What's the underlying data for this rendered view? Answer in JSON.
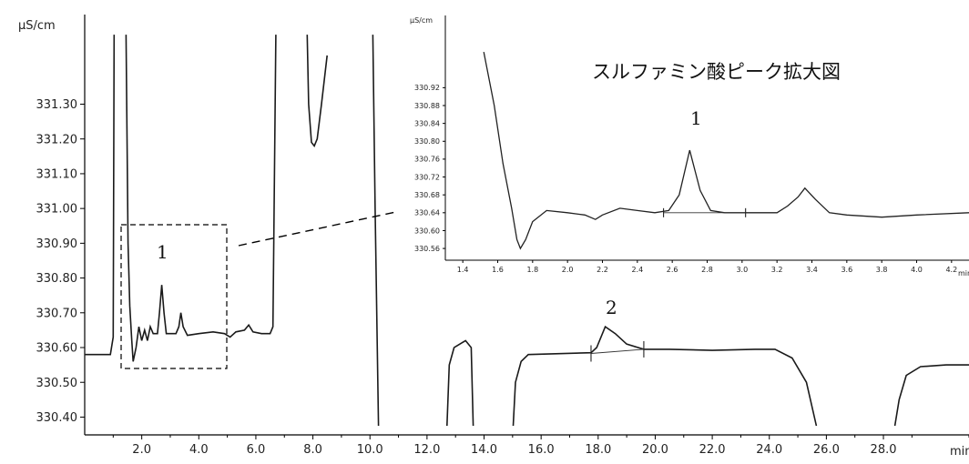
{
  "chart_data": [
    {
      "type": "line",
      "title": "",
      "xlabel": "min",
      "ylabel": "µS/cm",
      "xlim": [
        0,
        31
      ],
      "ylim": [
        330.375,
        331.44
      ],
      "x_ticks": [
        "2.0",
        "4.0",
        "6.0",
        "8.0",
        "10.0",
        "12.0",
        "14.0",
        "16.0",
        "18.0",
        "20.0",
        "22.0",
        "24.0",
        "26.0",
        "28.0"
      ],
      "y_ticks": [
        "330.40",
        "330.50",
        "330.60",
        "330.70",
        "330.80",
        "330.90",
        "331.00",
        "331.10",
        "331.20",
        "331.30"
      ],
      "grid": false,
      "annotations": [
        "1",
        "2"
      ],
      "series": [
        {
          "segments": [
            [
              [
                0,
                330.58
              ],
              [
                0.9,
                330.58
              ],
              [
                1.0,
                330.63
              ],
              [
                1.03,
                331.5
              ]
            ],
            [
              [
                1.45,
                331.5
              ],
              [
                1.52,
                330.9
              ],
              [
                1.58,
                330.72
              ],
              [
                1.65,
                330.62
              ],
              [
                1.7,
                330.56
              ],
              [
                1.8,
                330.6
              ],
              [
                1.9,
                330.66
              ],
              [
                2.0,
                330.62
              ],
              [
                2.1,
                330.65
              ],
              [
                2.2,
                330.62
              ],
              [
                2.3,
                330.66
              ],
              [
                2.4,
                330.64
              ],
              [
                2.55,
                330.64
              ],
              [
                2.62,
                330.7
              ],
              [
                2.7,
                330.78
              ],
              [
                2.78,
                330.7
              ],
              [
                2.86,
                330.64
              ],
              [
                3.0,
                330.64
              ],
              [
                3.2,
                330.64
              ],
              [
                3.3,
                330.66
              ],
              [
                3.37,
                330.7
              ],
              [
                3.45,
                330.66
              ],
              [
                3.6,
                330.635
              ],
              [
                4.0,
                330.64
              ],
              [
                4.5,
                330.645
              ],
              [
                4.9,
                330.64
              ],
              [
                5.1,
                330.63
              ],
              [
                5.3,
                330.645
              ],
              [
                5.6,
                330.65
              ],
              [
                5.75,
                330.665
              ],
              [
                5.9,
                330.645
              ],
              [
                6.2,
                330.64
              ],
              [
                6.5,
                330.64
              ],
              [
                6.6,
                330.66
              ],
              [
                6.7,
                331.5
              ]
            ],
            [
              [
                7.8,
                331.5
              ],
              [
                7.85,
                331.3
              ],
              [
                7.95,
                331.19
              ],
              [
                8.05,
                331.18
              ],
              [
                8.15,
                331.2
              ],
              [
                8.3,
                331.3
              ],
              [
                8.5,
                331.44
              ]
            ],
            [
              [
                10.1,
                331.5
              ],
              [
                10.18,
                331.0
              ],
              [
                10.3,
                330.375
              ]
            ],
            [
              [
                12.7,
                330.375
              ],
              [
                12.78,
                330.55
              ],
              [
                12.95,
                330.6
              ],
              [
                13.35,
                330.62
              ],
              [
                13.55,
                330.6
              ],
              [
                13.62,
                330.375
              ]
            ],
            [
              [
                15.02,
                330.375
              ],
              [
                15.1,
                330.5
              ],
              [
                15.3,
                330.56
              ],
              [
                15.55,
                330.58
              ],
              [
                17.75,
                330.585
              ],
              [
                17.95,
                330.6
              ],
              [
                18.25,
                330.66
              ],
              [
                18.6,
                330.64
              ],
              [
                19.0,
                330.61
              ],
              [
                19.6,
                330.595
              ],
              [
                20.5,
                330.595
              ],
              [
                22.0,
                330.592
              ],
              [
                23.5,
                330.595
              ],
              [
                24.2,
                330.595
              ],
              [
                24.8,
                330.57
              ],
              [
                25.3,
                330.5
              ],
              [
                25.65,
                330.375
              ]
            ],
            [
              [
                28.4,
                330.375
              ],
              [
                28.55,
                330.45
              ],
              [
                28.8,
                330.52
              ],
              [
                29.3,
                330.545
              ],
              [
                30.2,
                330.55
              ],
              [
                31,
                330.55
              ]
            ]
          ],
          "baseline": [
            [
              17.75,
              330.583
            ],
            [
              19.6,
              330.595
            ]
          ]
        }
      ]
    },
    {
      "type": "line",
      "title": "スルファミン酸ピーク拡大図",
      "xlabel": "min",
      "ylabel": "µS/cm",
      "xlim": [
        1.3,
        4.3
      ],
      "ylim": [
        330.55,
        330.99
      ],
      "x_ticks": [
        "1.4",
        "1.6",
        "1.8",
        "2.0",
        "2.2",
        "2.4",
        "2.6",
        "2.8",
        "3.0",
        "3.2",
        "3.4",
        "3.6",
        "3.8",
        "4.0",
        "4.2"
      ],
      "y_ticks": [
        "330.56",
        "330.60",
        "330.64",
        "330.68",
        "330.72",
        "330.76",
        "330.80",
        "330.84",
        "330.88",
        "330.92"
      ],
      "grid": false,
      "annotations": [
        "1"
      ],
      "series": [
        {
          "points": [
            [
              1.52,
              331.0
            ],
            [
              1.58,
              330.88
            ],
            [
              1.63,
              330.75
            ],
            [
              1.68,
              330.65
            ],
            [
              1.71,
              330.58
            ],
            [
              1.73,
              330.56
            ],
            [
              1.76,
              330.58
            ],
            [
              1.8,
              330.62
            ],
            [
              1.88,
              330.645
            ],
            [
              2.0,
              330.64
            ],
            [
              2.1,
              330.635
            ],
            [
              2.16,
              330.625
            ],
            [
              2.2,
              330.635
            ],
            [
              2.3,
              330.65
            ],
            [
              2.4,
              330.645
            ],
            [
              2.5,
              330.64
            ],
            [
              2.58,
              330.645
            ],
            [
              2.64,
              330.68
            ],
            [
              2.7,
              330.78
            ],
            [
              2.76,
              330.69
            ],
            [
              2.82,
              330.645
            ],
            [
              2.9,
              330.64
            ],
            [
              3.0,
              330.64
            ],
            [
              3.1,
              330.64
            ],
            [
              3.2,
              330.64
            ],
            [
              3.26,
              330.655
            ],
            [
              3.32,
              330.675
            ],
            [
              3.36,
              330.695
            ],
            [
              3.42,
              330.67
            ],
            [
              3.5,
              330.64
            ],
            [
              3.6,
              330.635
            ],
            [
              3.8,
              330.63
            ],
            [
              4.0,
              330.635
            ],
            [
              4.3,
              330.64
            ]
          ],
          "baseline": [
            [
              2.55,
              330.64
            ],
            [
              3.02,
              330.64
            ]
          ]
        }
      ]
    }
  ]
}
